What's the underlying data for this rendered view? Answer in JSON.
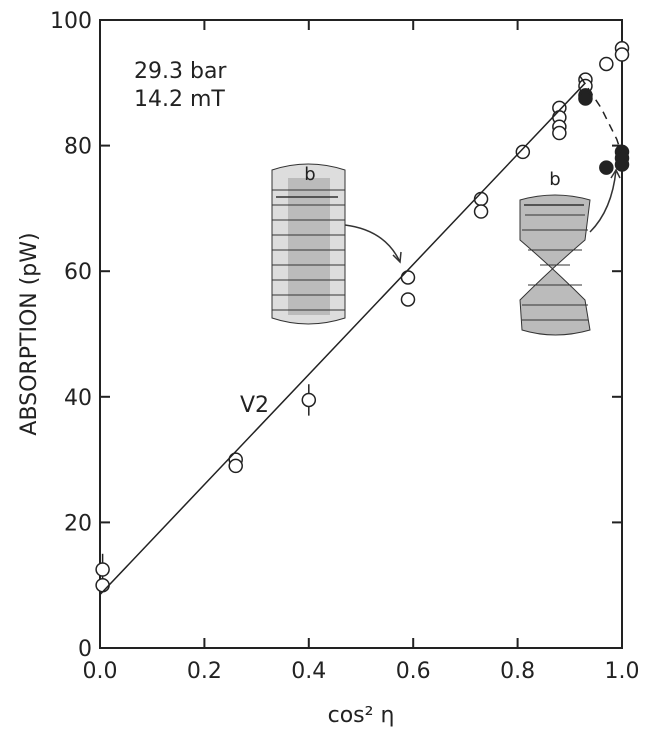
{
  "chart_data": {
    "type": "scatter",
    "xlabel": "cos² η",
    "ylabel": "ABSORPTION (pW)",
    "annotations": [
      "29.3 bar",
      "14.2 mT",
      "V2"
    ],
    "inset_labels": [
      "b",
      "b"
    ],
    "xlim": [
      0,
      1
    ],
    "ylim": [
      0,
      100
    ],
    "xticks": [
      {
        "value": 0,
        "label": "0.0"
      },
      0.2,
      0.4,
      0.6,
      0.8,
      {
        "value": 1,
        "label": "1.0"
      }
    ],
    "yticks": [
      0,
      20,
      40,
      60,
      80,
      100
    ],
    "grid": false,
    "series": [
      {
        "type": "scatter",
        "marker": "open",
        "color": "#222",
        "x": [
          0.005,
          0.005,
          0.26,
          0.26,
          0.4,
          0.59,
          0.59,
          0.73,
          0.73,
          0.81,
          0.88,
          0.88,
          0.88,
          0.88,
          0.93,
          0.93,
          0.97,
          1.0,
          1.0
        ],
        "values": [
          12.5,
          10,
          30,
          29,
          39.5,
          59,
          55.5,
          71.5,
          69.5,
          79,
          86,
          84.5,
          83,
          82,
          90.5,
          89.5,
          93,
          95.5,
          94.5
        ],
        "errors": [
          2.5,
          null,
          null,
          null,
          2.5,
          null,
          null,
          null,
          null,
          null,
          null,
          null,
          null,
          null,
          null,
          null,
          null,
          null,
          null
        ]
      },
      {
        "type": "scatter",
        "marker": "filled",
        "color": "#222",
        "x": [
          0.93,
          0.93,
          0.97,
          1.0,
          1.0,
          1.0
        ],
        "values": [
          88,
          87.5,
          76.5,
          79,
          78,
          77
        ]
      },
      {
        "type": "line",
        "dashed": false,
        "color": "#222",
        "x": [
          0,
          0.93
        ],
        "values": [
          8.5,
          90
        ]
      },
      {
        "type": "line",
        "dashed": true,
        "color": "#222",
        "x": [
          0.92,
          0.96,
          0.99,
          1.0
        ],
        "values": [
          91,
          86,
          81,
          78.5
        ]
      }
    ]
  }
}
